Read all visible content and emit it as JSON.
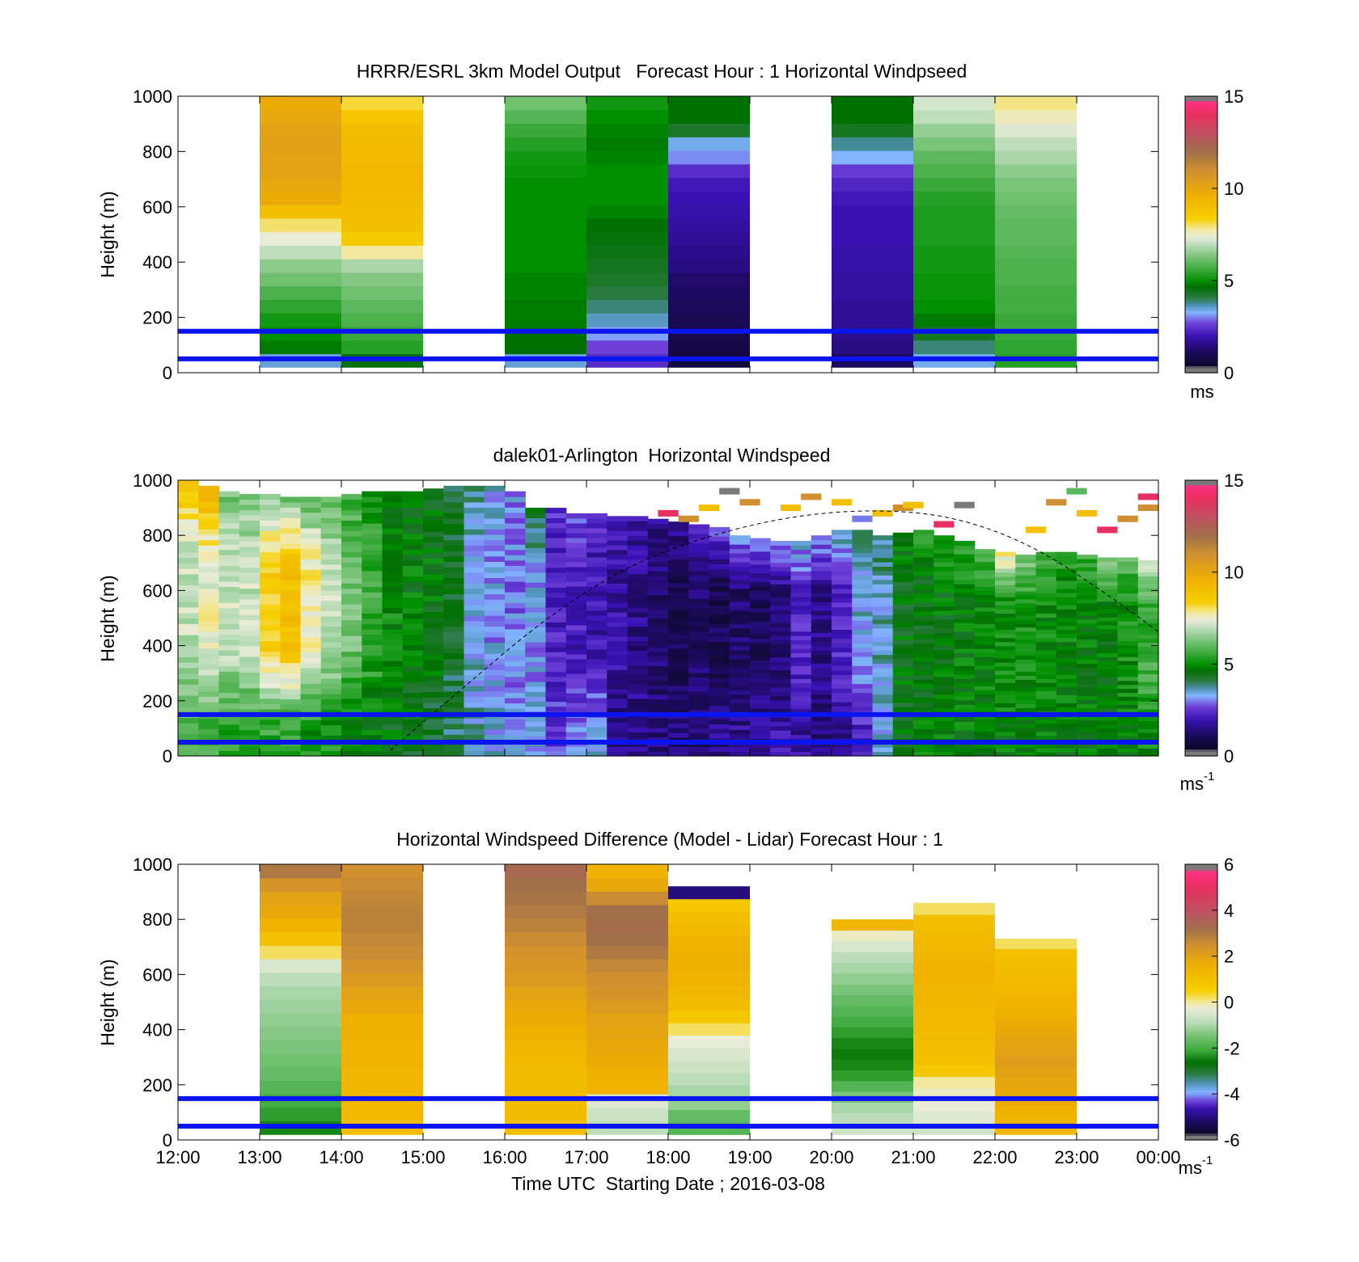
{
  "chart_data": [
    {
      "type": "heatmap",
      "title": "HRRR/ESRL 3km Model Output   Forecast Hour : 1 Horizontal Windpseed",
      "ylabel": "Height (m)",
      "ylim": [
        0,
        1000
      ],
      "yticks": [
        "0",
        "200",
        "400",
        "600",
        "800",
        "1000"
      ],
      "xlim": [
        12,
        24
      ],
      "colorbar": {
        "min": 0,
        "max": 15,
        "ticks": [
          "0",
          "5",
          "10",
          "15"
        ],
        "unit": "ms",
        "unit_sup": "",
        "palette": "wind"
      },
      "hlines": [
        50,
        150
      ],
      "hline_color": "#0a14f0",
      "columns": [
        {
          "t0": 13,
          "t1": 14,
          "top": 1000,
          "bottom": 20,
          "values": [
            3.5,
            4.8,
            5.0,
            5.2,
            5.5,
            5.8,
            6.2,
            6.5,
            7.0,
            7.4,
            8.0,
            9.0,
            9.8,
            10.0,
            10.2,
            10.2,
            10.3,
            10.2,
            10.0,
            9.8
          ]
        },
        {
          "t0": 14,
          "t1": 15,
          "top": 1000,
          "bottom": 20,
          "values": [
            4.6,
            5.4,
            5.6,
            5.8,
            6.0,
            6.2,
            6.4,
            6.8,
            7.8,
            8.6,
            9.0,
            9.1,
            9.2,
            9.3,
            9.3,
            9.2,
            9.2,
            9.1,
            8.8,
            8.2
          ]
        },
        {
          "t0": 16,
          "t1": 17,
          "top": 1000,
          "bottom": 20,
          "values": [
            3.5,
            4.7,
            4.7,
            4.8,
            4.8,
            4.9,
            4.9,
            5.0,
            5.0,
            5.0,
            5.0,
            5.0,
            5.0,
            5.0,
            5.1,
            5.2,
            5.4,
            5.6,
            5.9,
            6.2
          ]
        },
        {
          "t0": 17,
          "t1": 18,
          "top": 1000,
          "bottom": 20,
          "values": [
            2.4,
            2.7,
            3.2,
            3.6,
            3.9,
            4.1,
            4.3,
            4.4,
            4.5,
            4.6,
            4.7,
            4.9,
            5.0,
            5.0,
            5.0,
            4.9,
            4.8,
            4.9,
            5.0,
            5.2
          ]
        },
        {
          "t0": 18,
          "t1": 19,
          "top": 1000,
          "bottom": 20,
          "values": [
            0.7,
            0.8,
            0.9,
            1.0,
            1.1,
            1.2,
            1.3,
            1.5,
            1.6,
            1.7,
            1.8,
            1.9,
            2.0,
            2.1,
            2.4,
            3.1,
            3.4,
            4.3,
            4.7,
            4.7
          ]
        },
        {
          "t0": 20,
          "t1": 21,
          "top": 1000,
          "bottom": 20,
          "values": [
            1.2,
            1.5,
            1.6,
            1.7,
            1.7,
            1.8,
            1.8,
            1.9,
            1.9,
            2.0,
            2.0,
            2.0,
            2.1,
            2.3,
            2.6,
            3.3,
            3.8,
            4.4,
            4.7,
            4.7
          ]
        },
        {
          "t0": 21,
          "t1": 22,
          "top": 1000,
          "bottom": 20,
          "values": [
            3.4,
            3.9,
            4.4,
            4.8,
            5.0,
            5.1,
            5.1,
            5.2,
            5.2,
            5.3,
            5.3,
            5.3,
            5.4,
            5.6,
            5.8,
            6.0,
            6.3,
            6.6,
            7.0,
            7.2
          ]
        },
        {
          "t0": 22,
          "t1": 23,
          "top": 1000,
          "bottom": 20,
          "values": [
            5.4,
            5.5,
            5.6,
            5.6,
            5.7,
            5.7,
            5.8,
            5.8,
            5.9,
            6.0,
            6.0,
            6.1,
            6.2,
            6.3,
            6.5,
            6.8,
            7.0,
            7.3,
            7.6,
            7.9
          ]
        }
      ]
    },
    {
      "type": "heatmap",
      "title": "dalek01-Arlington  Horizontal Windspeed",
      "ylabel": "Height (m)",
      "ylim": [
        0,
        1000
      ],
      "yticks": [
        "0",
        "200",
        "400",
        "600",
        "800",
        "1000"
      ],
      "xlim": [
        12,
        24
      ],
      "colorbar": {
        "min": 0,
        "max": 15,
        "ticks": [
          "0",
          "5",
          "10",
          "15"
        ],
        "unit": "ms",
        "unit_sup": "-1",
        "palette": "wind"
      },
      "hlines": [
        50,
        150
      ],
      "hline_color": "#0a14f0",
      "curve": {
        "label": "dashed",
        "points": [
          [
            14.6,
            20
          ],
          [
            15.5,
            250
          ],
          [
            16.5,
            500
          ],
          [
            17.5,
            690
          ],
          [
            18.5,
            800
          ],
          [
            19.5,
            870
          ],
          [
            20.5,
            895
          ],
          [
            21.5,
            870
          ],
          [
            22.5,
            760
          ],
          [
            23.5,
            560
          ],
          [
            24.0,
            450
          ]
        ]
      },
      "profiles": [
        {
          "t": 12.125,
          "top": 1000,
          "mid": 7.0,
          "top_v": 9.0,
          "low": 6.0
        },
        {
          "t": 12.375,
          "top": 980,
          "mid": 7.5,
          "top_v": 9.5,
          "low": 5.8
        },
        {
          "t": 12.625,
          "top": 960,
          "mid": 7.2,
          "top_v": 6.2,
          "low": 5.5
        },
        {
          "t": 12.875,
          "top": 950,
          "mid": 7.0,
          "top_v": 6.4,
          "low": 5.6
        },
        {
          "t": 13.125,
          "top": 950,
          "mid": 8.5,
          "top_v": 6.5,
          "low": 5.5
        },
        {
          "t": 13.375,
          "top": 940,
          "mid": 9.0,
          "top_v": 6.2,
          "low": 5.4
        },
        {
          "t": 13.625,
          "top": 940,
          "mid": 7.8,
          "top_v": 6.0,
          "low": 5.2
        },
        {
          "t": 13.875,
          "top": 940,
          "mid": 7.0,
          "top_v": 6.0,
          "low": 5.2
        },
        {
          "t": 14.125,
          "top": 950,
          "mid": 6.2,
          "top_v": 5.5,
          "low": 5.0
        },
        {
          "t": 14.375,
          "top": 960,
          "mid": 5.6,
          "top_v": 5.0,
          "low": 4.8
        },
        {
          "t": 14.625,
          "top": 960,
          "mid": 5.0,
          "top_v": 4.8,
          "low": 4.6
        },
        {
          "t": 14.875,
          "top": 960,
          "mid": 4.8,
          "top_v": 4.6,
          "low": 4.5
        },
        {
          "t": 15.125,
          "top": 970,
          "mid": 4.7,
          "top_v": 4.5,
          "low": 4.4
        },
        {
          "t": 15.375,
          "top": 980,
          "mid": 4.4,
          "top_v": 4.2,
          "low": 4.0
        },
        {
          "t": 15.625,
          "top": 980,
          "mid": 3.4,
          "top_v": 3.6,
          "low": 3.6
        },
        {
          "t": 15.875,
          "top": 980,
          "mid": 3.2,
          "top_v": 3.4,
          "low": 3.4
        },
        {
          "t": 16.125,
          "top": 960,
          "mid": 3.0,
          "top_v": 3.2,
          "low": 3.2
        },
        {
          "t": 16.375,
          "top": 900,
          "mid": 3.2,
          "top_v": 4.5,
          "low": 3.2
        },
        {
          "t": 16.625,
          "top": 900,
          "mid": 2.2,
          "top_v": 2.4,
          "low": 2.6
        },
        {
          "t": 16.875,
          "top": 880,
          "mid": 2.2,
          "top_v": 2.6,
          "low": 3.0
        },
        {
          "t": 17.125,
          "top": 880,
          "mid": 2.0,
          "top_v": 2.4,
          "low": 3.3
        },
        {
          "t": 17.375,
          "top": 870,
          "mid": 1.8,
          "top_v": 2.2,
          "low": 1.6
        },
        {
          "t": 17.625,
          "top": 870,
          "mid": 1.6,
          "top_v": 2.0,
          "low": 1.6
        },
        {
          "t": 17.875,
          "top": 860,
          "mid": 1.3,
          "top_v": 1.8,
          "low": 1.5
        },
        {
          "t": 18.125,
          "top": 850,
          "mid": 1.0,
          "top_v": 1.6,
          "low": 1.4
        },
        {
          "t": 18.375,
          "top": 840,
          "mid": 1.2,
          "top_v": 2.6,
          "low": 1.5
        },
        {
          "t": 18.625,
          "top": 830,
          "mid": 1.0,
          "top_v": 2.8,
          "low": 1.6
        },
        {
          "t": 18.875,
          "top": 800,
          "mid": 1.3,
          "top_v": 3.0,
          "low": 1.7
        },
        {
          "t": 19.125,
          "top": 790,
          "mid": 1.1,
          "top_v": 3.2,
          "low": 1.8
        },
        {
          "t": 19.375,
          "top": 780,
          "mid": 1.4,
          "top_v": 3.3,
          "low": 1.9
        },
        {
          "t": 19.625,
          "top": 780,
          "mid": 2.3,
          "top_v": 3.4,
          "low": 1.8
        },
        {
          "t": 19.875,
          "top": 800,
          "mid": 1.6,
          "top_v": 3.2,
          "low": 1.4
        },
        {
          "t": 20.125,
          "top": 820,
          "mid": 2.4,
          "top_v": 3.6,
          "low": 1.6
        },
        {
          "t": 20.375,
          "top": 820,
          "mid": 3.4,
          "top_v": 3.8,
          "low": 2.2
        },
        {
          "t": 20.625,
          "top": 800,
          "mid": 3.6,
          "top_v": 4.0,
          "low": 3.5
        },
        {
          "t": 20.875,
          "top": 810,
          "mid": 4.6,
          "top_v": 5.0,
          "low": 4.6
        },
        {
          "t": 21.125,
          "top": 820,
          "mid": 4.6,
          "top_v": 5.3,
          "low": 4.8
        },
        {
          "t": 21.375,
          "top": 800,
          "mid": 4.7,
          "top_v": 5.5,
          "low": 4.8
        },
        {
          "t": 21.625,
          "top": 780,
          "mid": 4.8,
          "top_v": 5.6,
          "low": 4.8
        },
        {
          "t": 21.875,
          "top": 750,
          "mid": 4.9,
          "top_v": 5.8,
          "low": 4.8
        },
        {
          "t": 22.125,
          "top": 740,
          "mid": 5.0,
          "top_v": 8.0,
          "low": 4.8
        },
        {
          "t": 22.375,
          "top": 730,
          "mid": 5.1,
          "top_v": 6.5,
          "low": 4.8
        },
        {
          "t": 22.625,
          "top": 740,
          "mid": 5.0,
          "top_v": 6.0,
          "low": 4.8
        },
        {
          "t": 22.875,
          "top": 740,
          "mid": 4.9,
          "top_v": 5.4,
          "low": 4.7
        },
        {
          "t": 23.125,
          "top": 730,
          "mid": 4.8,
          "top_v": 5.6,
          "low": 4.7
        },
        {
          "t": 23.375,
          "top": 720,
          "mid": 4.8,
          "top_v": 6.5,
          "low": 4.7
        },
        {
          "t": 23.625,
          "top": 720,
          "mid": 5.1,
          "top_v": 6.0,
          "low": 4.8
        },
        {
          "t": 23.875,
          "top": 710,
          "mid": 5.6,
          "top_v": 7.0,
          "low": 5.2
        }
      ],
      "sparse_top": [
        {
          "t": 18.0,
          "h": 880,
          "v": 14.0
        },
        {
          "t": 18.25,
          "h": 860,
          "v": 11.0
        },
        {
          "t": 18.5,
          "h": 900,
          "v": 9.0
        },
        {
          "t": 18.75,
          "h": 960,
          "v": 15.0
        },
        {
          "t": 19.0,
          "h": 920,
          "v": 11.0
        },
        {
          "t": 19.5,
          "h": 900,
          "v": 9.0
        },
        {
          "t": 19.75,
          "h": 940,
          "v": 11.0
        },
        {
          "t": 20.125,
          "h": 920,
          "v": 9.0
        },
        {
          "t": 20.375,
          "h": 860,
          "v": 3.0
        },
        {
          "t": 20.625,
          "h": 880,
          "v": 9.0
        },
        {
          "t": 20.875,
          "h": 900,
          "v": 11.0
        },
        {
          "t": 21.0,
          "h": 910,
          "v": 9.0
        },
        {
          "t": 21.375,
          "h": 840,
          "v": 14.0
        },
        {
          "t": 21.625,
          "h": 910,
          "v": 15.0
        },
        {
          "t": 22.5,
          "h": 820,
          "v": 9.0
        },
        {
          "t": 22.75,
          "h": 920,
          "v": 11.0
        },
        {
          "t": 23.0,
          "h": 960,
          "v": 6.0
        },
        {
          "t": 23.125,
          "h": 880,
          "v": 9.0
        },
        {
          "t": 23.375,
          "h": 820,
          "v": 14.0
        },
        {
          "t": 23.625,
          "h": 860,
          "v": 11.0
        },
        {
          "t": 23.875,
          "h": 940,
          "v": 14.0
        },
        {
          "t": 23.875,
          "h": 900,
          "v": 11.0
        }
      ]
    },
    {
      "type": "heatmap",
      "title": "Horizontal Windspeed Difference (Model - Lidar) Forecast Hour : 1",
      "ylabel": "Height (m)",
      "xlabel": "Time UTC  Starting Date ; 2016-03-08",
      "ylim": [
        0,
        1000
      ],
      "yticks": [
        "0",
        "200",
        "400",
        "600",
        "800",
        "1000"
      ],
      "xlim": [
        12,
        24
      ],
      "xticks": [
        "12:00",
        "13:00",
        "14:00",
        "15:00",
        "16:00",
        "17:00",
        "18:00",
        "19:00",
        "20:00",
        "21:00",
        "22:00",
        "23:00",
        "00:00"
      ],
      "colorbar": {
        "min": -6,
        "max": 6,
        "ticks": [
          "-6",
          "-4",
          "-2",
          "0",
          "2",
          "4",
          "6"
        ],
        "unit": "ms",
        "unit_sup": "-1",
        "palette": "diff"
      },
      "hlines": [
        50,
        150
      ],
      "hline_color": "#0a14f0",
      "columns": [
        {
          "t0": 13,
          "t1": 14,
          "top": 1000,
          "bottom": 20,
          "values": [
            -2.4,
            -2.2,
            -2.0,
            -1.8,
            -1.6,
            -1.5,
            -1.4,
            -1.3,
            -1.2,
            -1.1,
            -1.0,
            -0.8,
            -0.5,
            0.2,
            1.0,
            1.5,
            1.8,
            2.0,
            2.4,
            3.0
          ]
        },
        {
          "t0": 14,
          "t1": 15,
          "top": 1000,
          "bottom": 20,
          "values": [
            1.2,
            1.3,
            1.3,
            1.4,
            1.4,
            1.5,
            1.5,
            1.6,
            1.6,
            1.8,
            2.0,
            2.2,
            2.4,
            2.6,
            2.7,
            2.8,
            2.8,
            2.7,
            2.6,
            2.5
          ]
        },
        {
          "t0": 16,
          "t1": 17,
          "top": 1000,
          "bottom": 20,
          "values": [
            1.2,
            1.2,
            1.2,
            1.2,
            1.2,
            1.3,
            1.4,
            1.6,
            1.7,
            1.8,
            2.0,
            2.2,
            2.3,
            2.4,
            2.6,
            2.8,
            3.0,
            3.1,
            3.2,
            3.4
          ]
        },
        {
          "t0": 17,
          "t1": 18,
          "top": 1000,
          "bottom": 20,
          "values": [
            -0.8,
            -0.6,
            -0.4,
            1.5,
            1.6,
            1.7,
            1.8,
            1.9,
            2.0,
            2.2,
            2.4,
            2.5,
            2.7,
            3.0,
            3.2,
            3.3,
            3.2,
            2.6,
            1.8,
            1.5
          ]
        },
        {
          "t0": 18,
          "t1": 19,
          "top": 920,
          "bottom": 20,
          "values": [
            -1.8,
            -1.6,
            -1.2,
            -1.0,
            -0.8,
            -0.6,
            -0.5,
            -0.3,
            0.2,
            0.8,
            1.2,
            1.4,
            1.5,
            1.6,
            1.6,
            1.5,
            1.3,
            1.1,
            0.8,
            -5.0
          ]
        },
        {
          "t0": 20,
          "t1": 21,
          "top": 800,
          "bottom": 20,
          "values": [
            -0.6,
            -0.8,
            -1.0,
            -1.4,
            -1.8,
            -2.2,
            -2.4,
            -2.5,
            -2.4,
            -2.2,
            -2.0,
            -1.8,
            -1.6,
            -1.4,
            -1.2,
            -1.0,
            -0.8,
            -0.5,
            -0.2,
            1.4
          ]
        },
        {
          "t0": 21,
          "t1": 22,
          "top": 860,
          "bottom": 20,
          "values": [
            -0.6,
            -0.4,
            -0.3,
            -0.2,
            0.0,
            0.8,
            1.0,
            1.1,
            1.2,
            1.3,
            1.3,
            1.4,
            1.4,
            1.5,
            1.5,
            1.4,
            1.3,
            1.2,
            1.1,
            0.2
          ]
        },
        {
          "t0": 22,
          "t1": 23,
          "top": 730,
          "bottom": 20,
          "values": [
            1.4,
            1.5,
            1.6,
            1.7,
            1.8,
            1.9,
            2.0,
            2.1,
            2.0,
            1.9,
            1.8,
            1.7,
            1.6,
            1.5,
            1.4,
            1.3,
            1.2,
            1.1,
            1.0,
            0.2
          ]
        }
      ]
    }
  ]
}
